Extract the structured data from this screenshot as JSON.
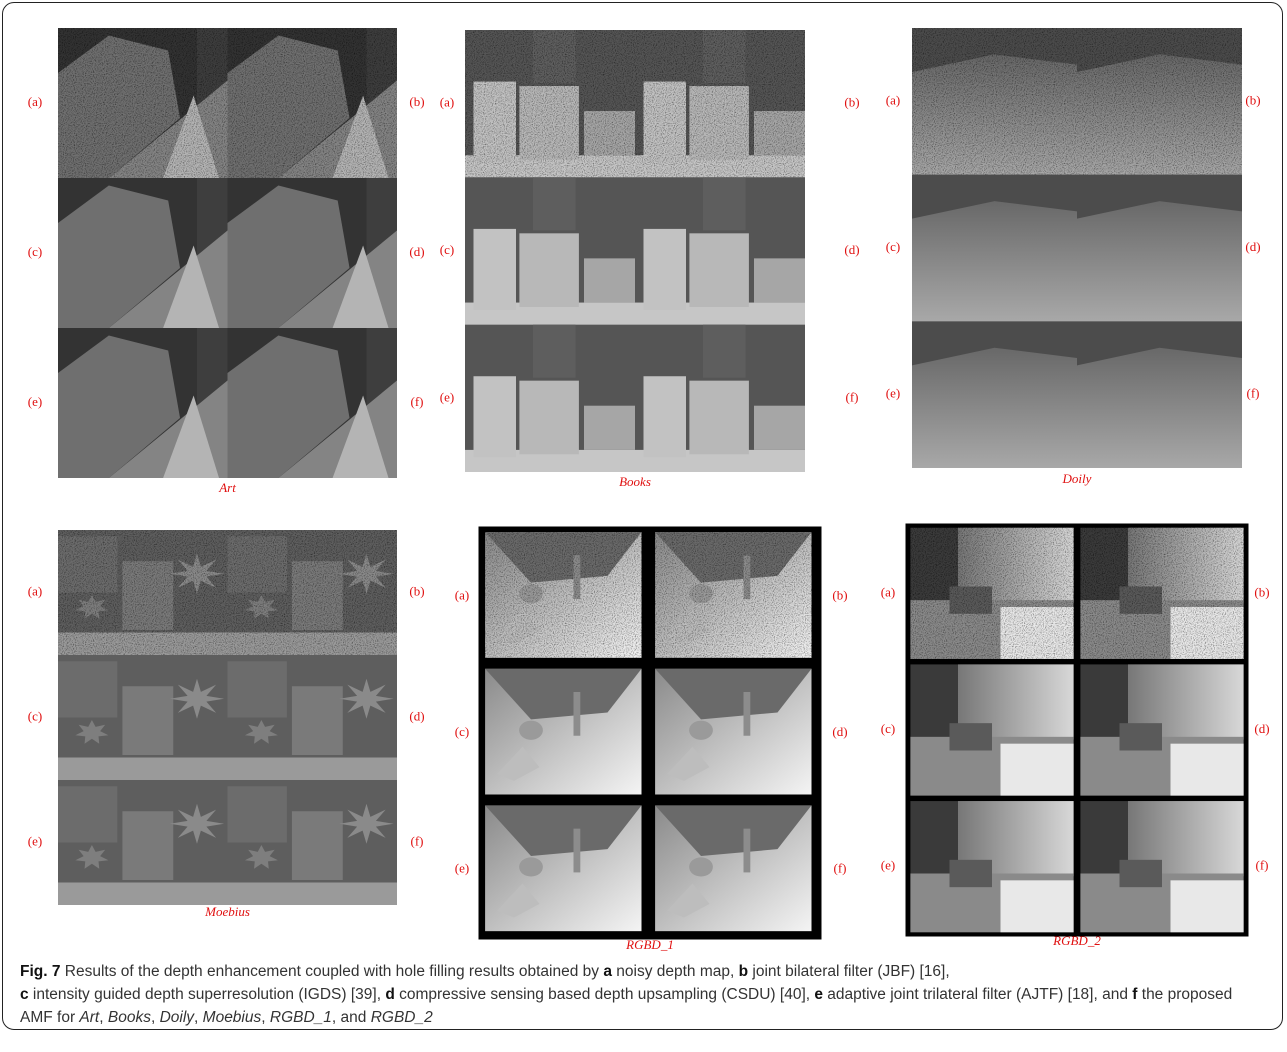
{
  "panels": [
    {
      "name": "Art",
      "labels": [
        "(a)",
        "(b)",
        "(c)",
        "(d)",
        "(e)",
        "(f)"
      ]
    },
    {
      "name": "Books",
      "labels": [
        "(a)",
        "(b)",
        "(c)",
        "(d)",
        "(e)",
        "(f)"
      ]
    },
    {
      "name": "Doily",
      "labels": [
        "(a)",
        "(b)",
        "(c)",
        "(d)",
        "(e)",
        "(f)"
      ]
    },
    {
      "name": "Moebius",
      "labels": [
        "(a)",
        "(b)",
        "(c)",
        "(d)",
        "(e)",
        "(f)"
      ]
    },
    {
      "name": "RGBD_1",
      "labels": [
        "(a)",
        "(b)",
        "(c)",
        "(d)",
        "(e)",
        "(f)"
      ]
    },
    {
      "name": "RGBD_2",
      "labels": [
        "(a)",
        "(b)",
        "(c)",
        "(d)",
        "(e)",
        "(f)"
      ]
    }
  ],
  "caption": [
    "Fig. 7",
    " Results of the depth enhancement coupled with hole filling results obtained by ",
    "a",
    " noisy depth map, ",
    "b",
    " joint bilateral filter (JBF) [16], ",
    "c",
    " intensity guided depth superresolution (IGDS) [39], ",
    "d",
    " compressive sensing based depth upsampling (CSDU) [40], ",
    "e",
    " adaptive joint trilateral filter (AJTF) [18], and ",
    "f",
    " the proposed AMF for ",
    "Art",
    ", ",
    "Books",
    ", ",
    "Doily",
    ", ",
    "Moebius",
    ", ",
    "RGBD_1",
    ", and ",
    "RGBD_2"
  ]
}
